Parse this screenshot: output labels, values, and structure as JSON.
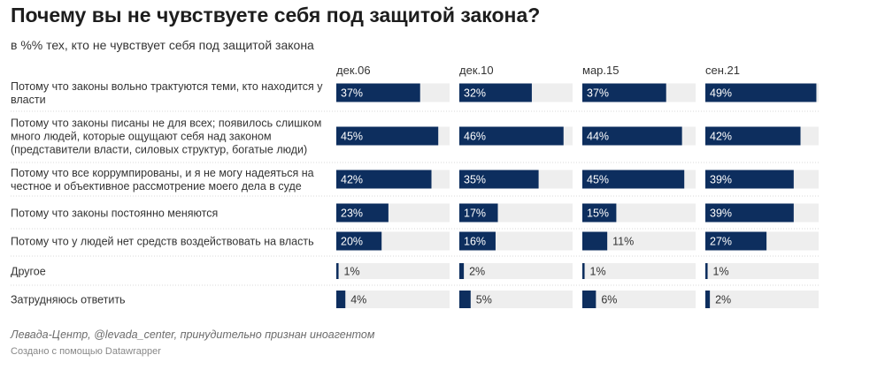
{
  "colors": {
    "bar": "#0d2e5e",
    "track": "#eeeeee",
    "label_on_bar": "#ffffff",
    "label_outside": "#333333",
    "divider": "#d9d9d9"
  },
  "title": "Почему вы не чувствуете себя под защитой закона?",
  "subtitle": "в %% тех, кто не чувствует себя под защитой закона",
  "notes": "Левада-Центр, @levada_center, принудительно признан иноагентом",
  "credit": "Создано с помощью Datawrapper",
  "chart_data": {
    "type": "bar",
    "orientation": "horizontal",
    "layout": "small-multiples",
    "value_suffix": "%",
    "xlim": [
      0,
      50
    ],
    "grid": false,
    "legend": "none",
    "categories": [
      "Потому что законы вольно трактуются теми, кто находится у власти",
      "Потому что законы писаны не для всех; появилось слишком много людей, которые ощущают себя над законом (представители власти, силовых структур, богатые люди)",
      "Потому что все коррумпированы, и я не могу надеяться на честное и объективное рассмотрение моего дела в суде",
      "Потому что законы постоянно меняются",
      "Потому что у людей нет средств воздействовать на власть",
      "Другое",
      "Затрудняюсь ответить"
    ],
    "category_lines": [
      [
        "Потому что законы вольно трактуются теми, кто находится у",
        "власти"
      ],
      [
        "Потому что законы писаны не для всех; появилось слишком",
        "много людей, которые ощущают себя над законом",
        "(представители власти, силовых структур, богатые люди)"
      ],
      [
        "Потому что все коррумпированы, и я не могу надеяться на",
        "честное и объективное рассмотрение моего дела в суде"
      ],
      [
        "Потому что законы постоянно меняются"
      ],
      [
        "Потому что у людей нет средств воздействовать на власть"
      ],
      [
        "Другое"
      ],
      [
        "Затрудняюсь ответить"
      ]
    ],
    "series": [
      {
        "name": "дек.06",
        "values": [
          37,
          45,
          42,
          23,
          20,
          1,
          4
        ]
      },
      {
        "name": "дек.10",
        "values": [
          32,
          46,
          35,
          17,
          16,
          2,
          5
        ]
      },
      {
        "name": "мар.15",
        "values": [
          37,
          44,
          45,
          15,
          11,
          1,
          6
        ]
      },
      {
        "name": "сен.21",
        "values": [
          49,
          42,
          39,
          39,
          27,
          1,
          2
        ]
      }
    ]
  }
}
